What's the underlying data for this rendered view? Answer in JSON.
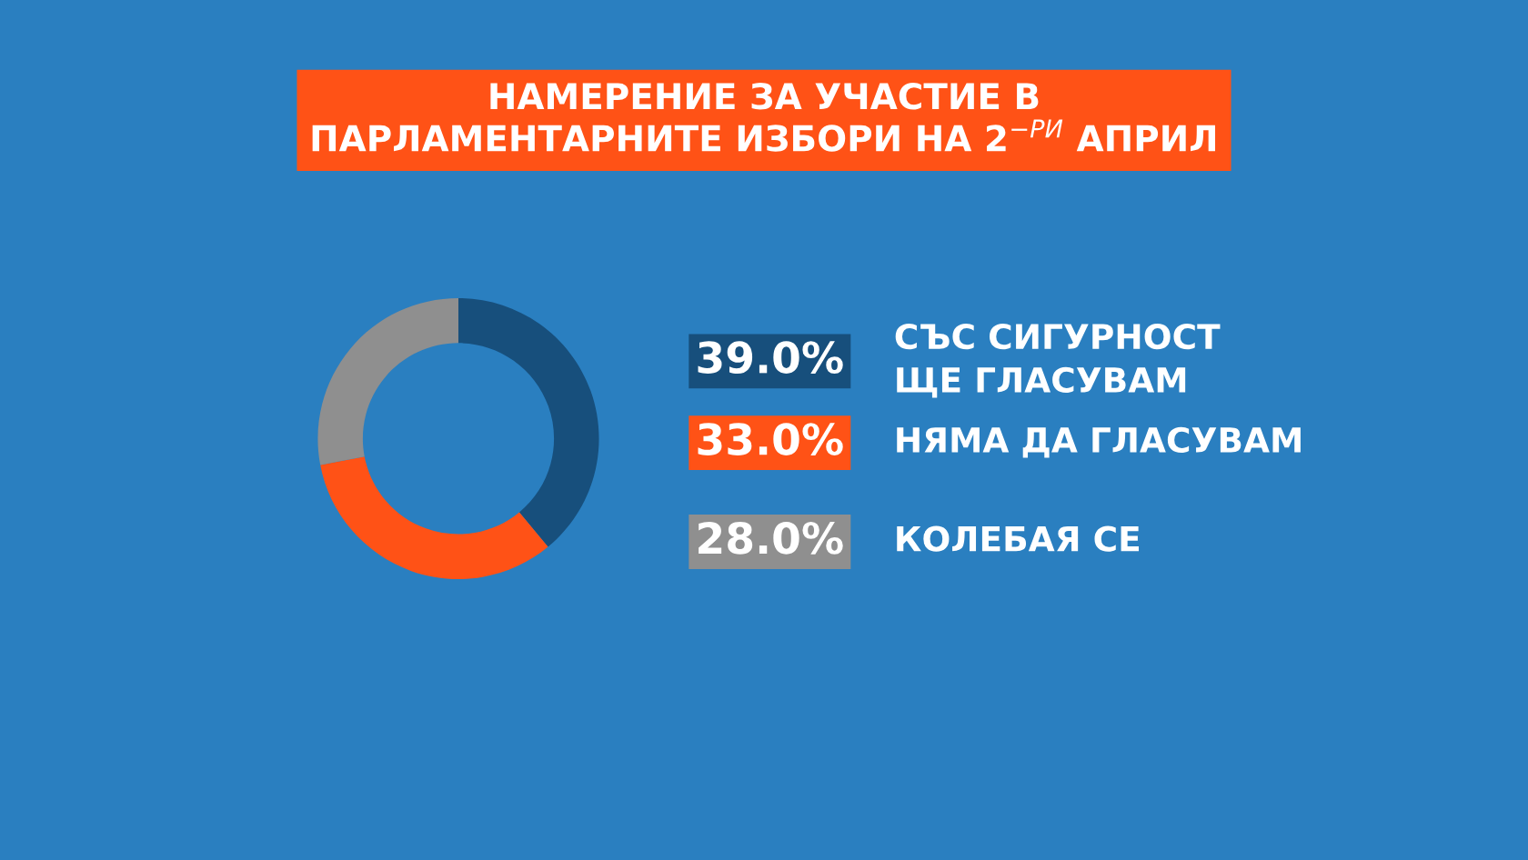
{
  "chart_data": {
    "type": "donut",
    "title": "НАМЕРЕНИЕ ЗА УЧАСТИЕ В\nПАРЛАМЕНТАРНИТЕ ИЗБОРИ НА 2$^{−РИ}$ АПРИЛ",
    "categories": [
      "СЪС СИГУРНОСТ\nЩЕ ГЛАСУВАМ",
      "НЯМА ДА ГЛАСУВАМ",
      "КОЛЕБАЯ СЕ"
    ],
    "values": [
      39.0,
      33.0,
      28.0
    ],
    "colors": [
      "#174f7c",
      "#ff5216",
      "#8f8f8f"
    ],
    "value_labels": [
      "39.0%",
      "33.0%",
      "28.0%"
    ],
    "legend": "right"
  }
}
